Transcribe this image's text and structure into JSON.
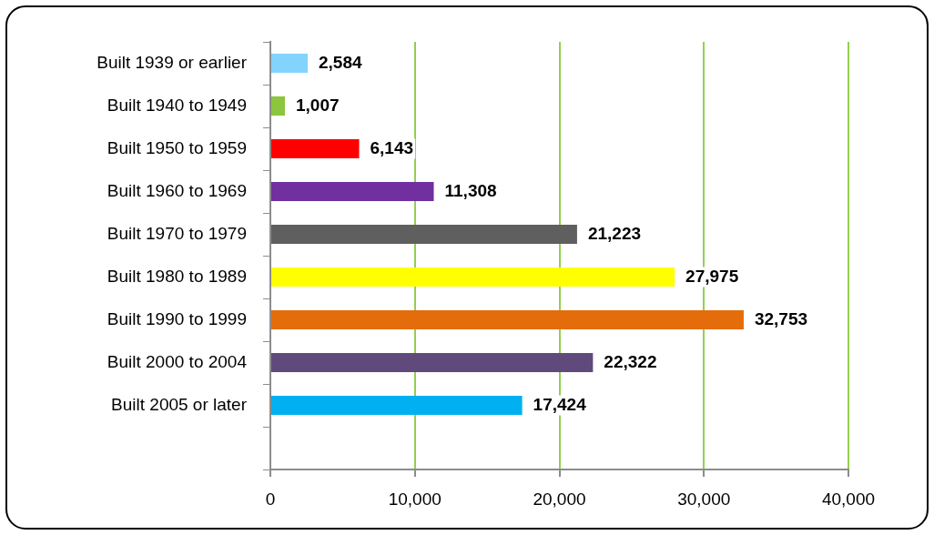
{
  "chart_data": {
    "type": "bar",
    "orientation": "horizontal",
    "categories": [
      "Built 1939 or earlier",
      "Built 1940 to 1949",
      "Built 1950 to 1959",
      "Built 1960 to 1969",
      "Built 1970 to 1979",
      "Built 1980 to 1989",
      "Built 1990 to 1999",
      "Built 2000 to 2004",
      "Built 2005 or later"
    ],
    "values": [
      2584,
      1007,
      6143,
      11308,
      21223,
      27975,
      32753,
      22322,
      17424
    ],
    "value_labels": [
      "2,584",
      "1,007",
      "6,143",
      "11,308",
      "21,223",
      "27,975",
      "32,753",
      "22,322",
      "17,424"
    ],
    "colors": [
      "#83d3ff",
      "#8cc63e",
      "#ff0000",
      "#7030a0",
      "#5f5f5f",
      "#ffff00",
      "#e46c0a",
      "#604a7b",
      "#00b0f0"
    ],
    "xlim": [
      0,
      40000
    ],
    "xticks": [
      0,
      {
        "value": 10000,
        "label": "10,000"
      },
      {
        "value": 20000,
        "label": "20,000"
      },
      {
        "value": 30000,
        "label": "30,000"
      },
      {
        "value": 40000,
        "label": "40,000"
      }
    ],
    "grid": "x"
  }
}
